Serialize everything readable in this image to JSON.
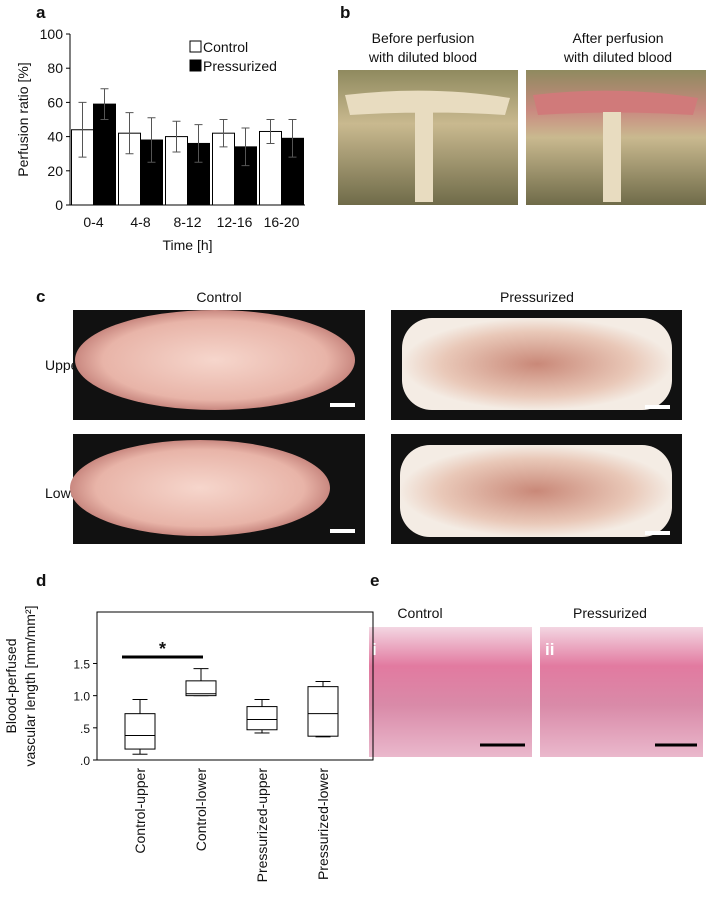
{
  "panel_labels": [
    "a",
    "b",
    "c",
    "d",
    "e"
  ],
  "chart_data": [
    {
      "type": "bar",
      "ylabel": "Perfusion ratio [%]",
      "xlabel": "Time [h]",
      "categories": [
        "0-4",
        "4-8",
        "8-12",
        "12-16",
        "16-20"
      ],
      "series": [
        {
          "name": "Control",
          "color": "#ffffff",
          "values": [
            44,
            42,
            40,
            42,
            43
          ],
          "errors": [
            16,
            12,
            9,
            8,
            7
          ]
        },
        {
          "name": "Pressurized",
          "color": "#000000",
          "values": [
            59,
            38,
            36,
            34,
            39
          ],
          "errors": [
            9,
            13,
            11,
            11,
            11
          ]
        }
      ],
      "ylim": [
        0,
        100
      ],
      "yticks": [
        0,
        20,
        40,
        60,
        80,
        100
      ],
      "grid": false,
      "legend": "top-right"
    },
    {
      "type": "box",
      "ylabel": [
        "Blood-perfused",
        "vascular length  [mm/mm²]"
      ],
      "categories": [
        "Control-upper",
        "Control-lower",
        "Pressurized-upper",
        "Pressurized-lower"
      ],
      "boxes": [
        {
          "min": 0.09,
          "q1": 0.17,
          "median": 0.38,
          "q3": 0.72,
          "max": 0.94
        },
        {
          "min": 1.0,
          "q1": 1.0,
          "median": 1.03,
          "q3": 1.23,
          "max": 1.42
        },
        {
          "min": 0.42,
          "q1": 0.47,
          "median": 0.63,
          "q3": 0.83,
          "max": 0.94
        },
        {
          "min": 0.36,
          "q1": 0.37,
          "median": 0.72,
          "q3": 1.14,
          "max": 1.22
        }
      ],
      "ylim": [
        0,
        2.3
      ],
      "yticks": [
        {
          "value": 0,
          "label": ".0"
        },
        {
          "value": 0.5,
          "label": ".5"
        },
        {
          "value": 1.0,
          "label": "1.0"
        },
        1.5
      ],
      "annotations": [
        {
          "text": "*"
        }
      ]
    }
  ],
  "panel_b": {
    "titles": [
      [
        "Before perfusion",
        "with diluted blood"
      ],
      [
        "After perfusion",
        "with diluted blood"
      ]
    ]
  },
  "panel_c": {
    "columns": [
      "Control",
      "Pressurized"
    ],
    "rows": [
      "Upper",
      "Lower"
    ]
  },
  "panel_e": {
    "columns": [
      "Control",
      "Pressurized"
    ],
    "labels": [
      "i",
      "ii"
    ]
  }
}
